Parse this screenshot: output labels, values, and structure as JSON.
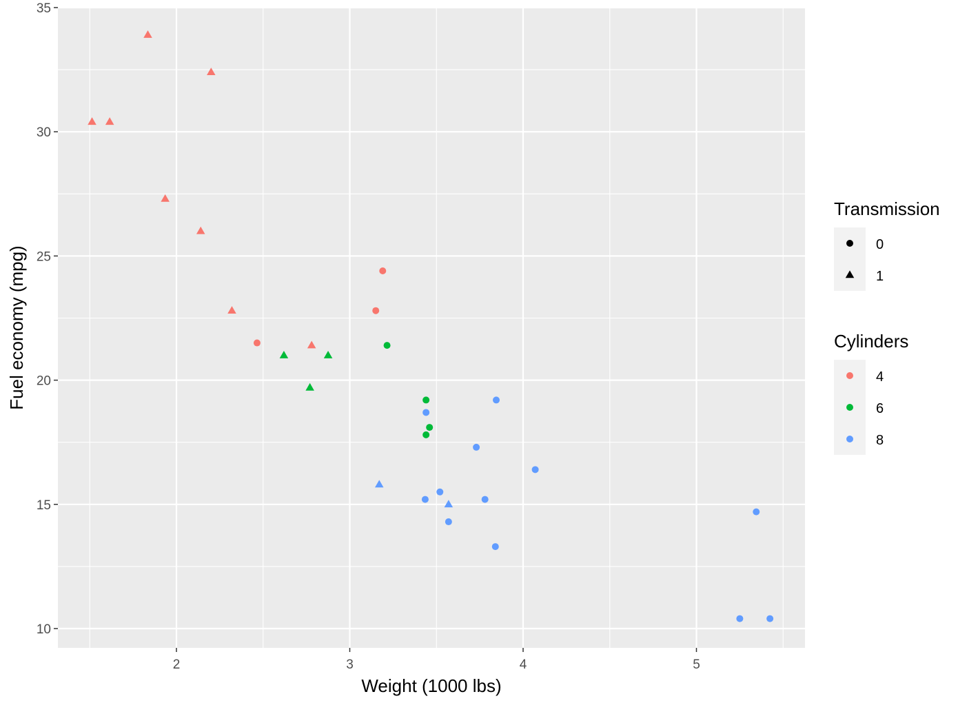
{
  "chart_data": {
    "type": "scatter",
    "title": "",
    "xlabel": "Weight (1000 lbs)",
    "ylabel": "Fuel economy (mpg)",
    "xlim": [
      1.32,
      5.62
    ],
    "ylim": [
      9.0,
      35.0
    ],
    "x_ticks": [
      2,
      3,
      4,
      5
    ],
    "y_ticks": [
      10,
      15,
      20,
      25,
      30,
      35
    ],
    "grid": true,
    "legend_position": "right",
    "colors": {
      "4": "#F8766D",
      "6": "#00BA38",
      "8": "#619CFF"
    },
    "legend": {
      "shape": {
        "title": "Transmission",
        "items": [
          {
            "label": "0",
            "shape": "circle"
          },
          {
            "label": "1",
            "shape": "triangle"
          }
        ]
      },
      "color": {
        "title": "Cylinders",
        "items": [
          {
            "label": "4",
            "color": "#F8766D"
          },
          {
            "label": "6",
            "color": "#00BA38"
          },
          {
            "label": "8",
            "color": "#619CFF"
          }
        ]
      }
    },
    "points": [
      {
        "x": 2.62,
        "y": 21.0,
        "cyl": "6",
        "am": "1"
      },
      {
        "x": 2.875,
        "y": 21.0,
        "cyl": "6",
        "am": "1"
      },
      {
        "x": 2.32,
        "y": 22.8,
        "cyl": "4",
        "am": "1"
      },
      {
        "x": 3.215,
        "y": 21.4,
        "cyl": "6",
        "am": "0"
      },
      {
        "x": 3.44,
        "y": 18.7,
        "cyl": "8",
        "am": "0"
      },
      {
        "x": 3.46,
        "y": 18.1,
        "cyl": "6",
        "am": "0"
      },
      {
        "x": 3.57,
        "y": 14.3,
        "cyl": "8",
        "am": "0"
      },
      {
        "x": 3.19,
        "y": 24.4,
        "cyl": "4",
        "am": "0"
      },
      {
        "x": 3.15,
        "y": 22.8,
        "cyl": "4",
        "am": "0"
      },
      {
        "x": 3.44,
        "y": 19.2,
        "cyl": "6",
        "am": "0"
      },
      {
        "x": 3.44,
        "y": 17.8,
        "cyl": "6",
        "am": "0"
      },
      {
        "x": 4.07,
        "y": 16.4,
        "cyl": "8",
        "am": "0"
      },
      {
        "x": 3.73,
        "y": 17.3,
        "cyl": "8",
        "am": "0"
      },
      {
        "x": 3.78,
        "y": 15.2,
        "cyl": "8",
        "am": "0"
      },
      {
        "x": 5.25,
        "y": 10.4,
        "cyl": "8",
        "am": "0"
      },
      {
        "x": 5.424,
        "y": 10.4,
        "cyl": "8",
        "am": "0"
      },
      {
        "x": 5.345,
        "y": 14.7,
        "cyl": "8",
        "am": "0"
      },
      {
        "x": 2.2,
        "y": 32.4,
        "cyl": "4",
        "am": "1"
      },
      {
        "x": 1.615,
        "y": 30.4,
        "cyl": "4",
        "am": "1"
      },
      {
        "x": 1.835,
        "y": 33.9,
        "cyl": "4",
        "am": "1"
      },
      {
        "x": 2.465,
        "y": 21.5,
        "cyl": "4",
        "am": "0"
      },
      {
        "x": 3.52,
        "y": 15.5,
        "cyl": "8",
        "am": "0"
      },
      {
        "x": 3.435,
        "y": 15.2,
        "cyl": "8",
        "am": "0"
      },
      {
        "x": 3.84,
        "y": 13.3,
        "cyl": "8",
        "am": "0"
      },
      {
        "x": 3.845,
        "y": 19.2,
        "cyl": "8",
        "am": "0"
      },
      {
        "x": 1.935,
        "y": 27.3,
        "cyl": "4",
        "am": "1"
      },
      {
        "x": 2.14,
        "y": 26.0,
        "cyl": "4",
        "am": "1"
      },
      {
        "x": 1.513,
        "y": 30.4,
        "cyl": "4",
        "am": "1"
      },
      {
        "x": 3.17,
        "y": 15.8,
        "cyl": "8",
        "am": "1"
      },
      {
        "x": 2.77,
        "y": 19.7,
        "cyl": "6",
        "am": "1"
      },
      {
        "x": 3.57,
        "y": 15.0,
        "cyl": "8",
        "am": "1"
      },
      {
        "x": 2.78,
        "y": 21.4,
        "cyl": "4",
        "am": "1"
      }
    ]
  }
}
